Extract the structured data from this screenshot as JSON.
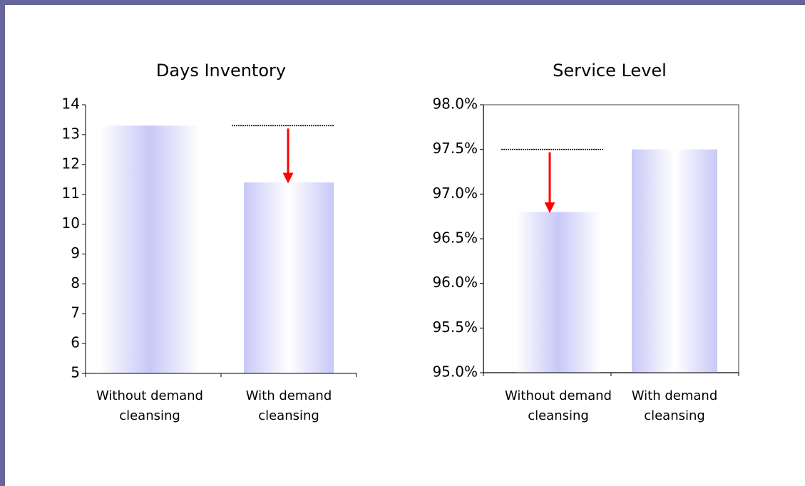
{
  "chart_data": [
    {
      "type": "bar",
      "title": "Days Inventory",
      "categories": [
        "Without demand cleansing",
        "With demand cleansing"
      ],
      "values": [
        13.3,
        11.4
      ],
      "color": "#c8c8f8",
      "ylim": [
        5,
        14
      ],
      "yticks": [
        5,
        6,
        7,
        8,
        9,
        10,
        11,
        12,
        13,
        14
      ]
    },
    {
      "type": "bar",
      "title": "Service Level",
      "categories": [
        "Without demand cleansing",
        "With demand cleansing"
      ],
      "values": [
        96.8,
        97.5
      ],
      "color": "#c8c8f8",
      "ylim": [
        95,
        98
      ],
      "yticks": [
        {
          "value": 95,
          "label": "95.0%"
        },
        {
          "value": 95.5,
          "label": "95.5%"
        },
        {
          "value": 96,
          "label": "96.0%"
        },
        {
          "value": 96.5,
          "label": "96.5%"
        },
        {
          "value": 97,
          "label": "97.0%"
        },
        {
          "value": 97.5,
          "label": "97.5%"
        },
        {
          "value": 98,
          "label": "98.0%"
        }
      ]
    }
  ]
}
